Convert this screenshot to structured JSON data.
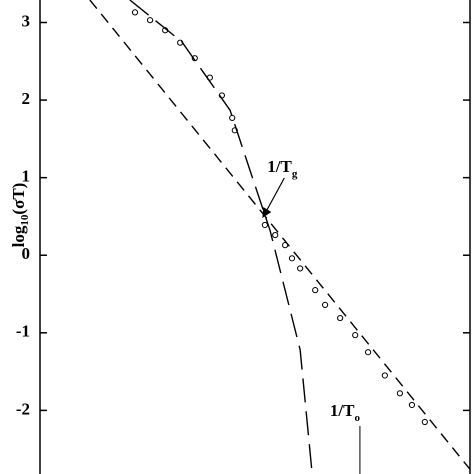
{
  "chart_data": {
    "type": "scatter",
    "ylabel": {
      "main": "log",
      "sub": "10",
      "rest": "(σT)"
    },
    "xlim": [
      0,
      1
    ],
    "ylim": [
      -2.82,
      3.29
    ],
    "yticks": [
      -2,
      -1,
      0,
      1,
      2,
      3
    ],
    "series": [
      {
        "style": "markers",
        "color": "#000000",
        "x": [
          0.221,
          0.256,
          0.291,
          0.326,
          0.36,
          0.395,
          0.423,
          0.447,
          0.453,
          0.523,
          0.547,
          0.57,
          0.586,
          0.605,
          0.64,
          0.663,
          0.698,
          0.733,
          0.763,
          0.802,
          0.837,
          0.865,
          0.895
        ],
        "values": [
          3.13,
          3.03,
          2.9,
          2.74,
          2.54,
          2.29,
          2.06,
          1.77,
          1.61,
          0.39,
          0.26,
          0.13,
          -0.04,
          -0.17,
          -0.45,
          -0.64,
          -0.81,
          -1.03,
          -1.25,
          -1.55,
          -1.78,
          -1.93,
          -2.15
        ]
      },
      {
        "style": "dashed",
        "color": "#000000",
        "x": [
          0.116,
          1.0
        ],
        "values": [
          3.29,
          -2.76
        ]
      },
      {
        "style": "long-dashed",
        "color": "#000000",
        "x": [
          0.209,
          0.33,
          0.442,
          0.488,
          0.535,
          0.57,
          0.605,
          0.633
        ],
        "values": [
          3.29,
          2.75,
          1.87,
          1.1,
          0.32,
          -0.45,
          -1.22,
          -2.82
        ]
      }
    ],
    "annotations": [
      {
        "main": "1/T",
        "sub": "g",
        "x": 0.517,
        "y": 0.48
      },
      {
        "main": "1/T",
        "sub": "o",
        "x": 0.744,
        "y": -2.2
      }
    ]
  }
}
